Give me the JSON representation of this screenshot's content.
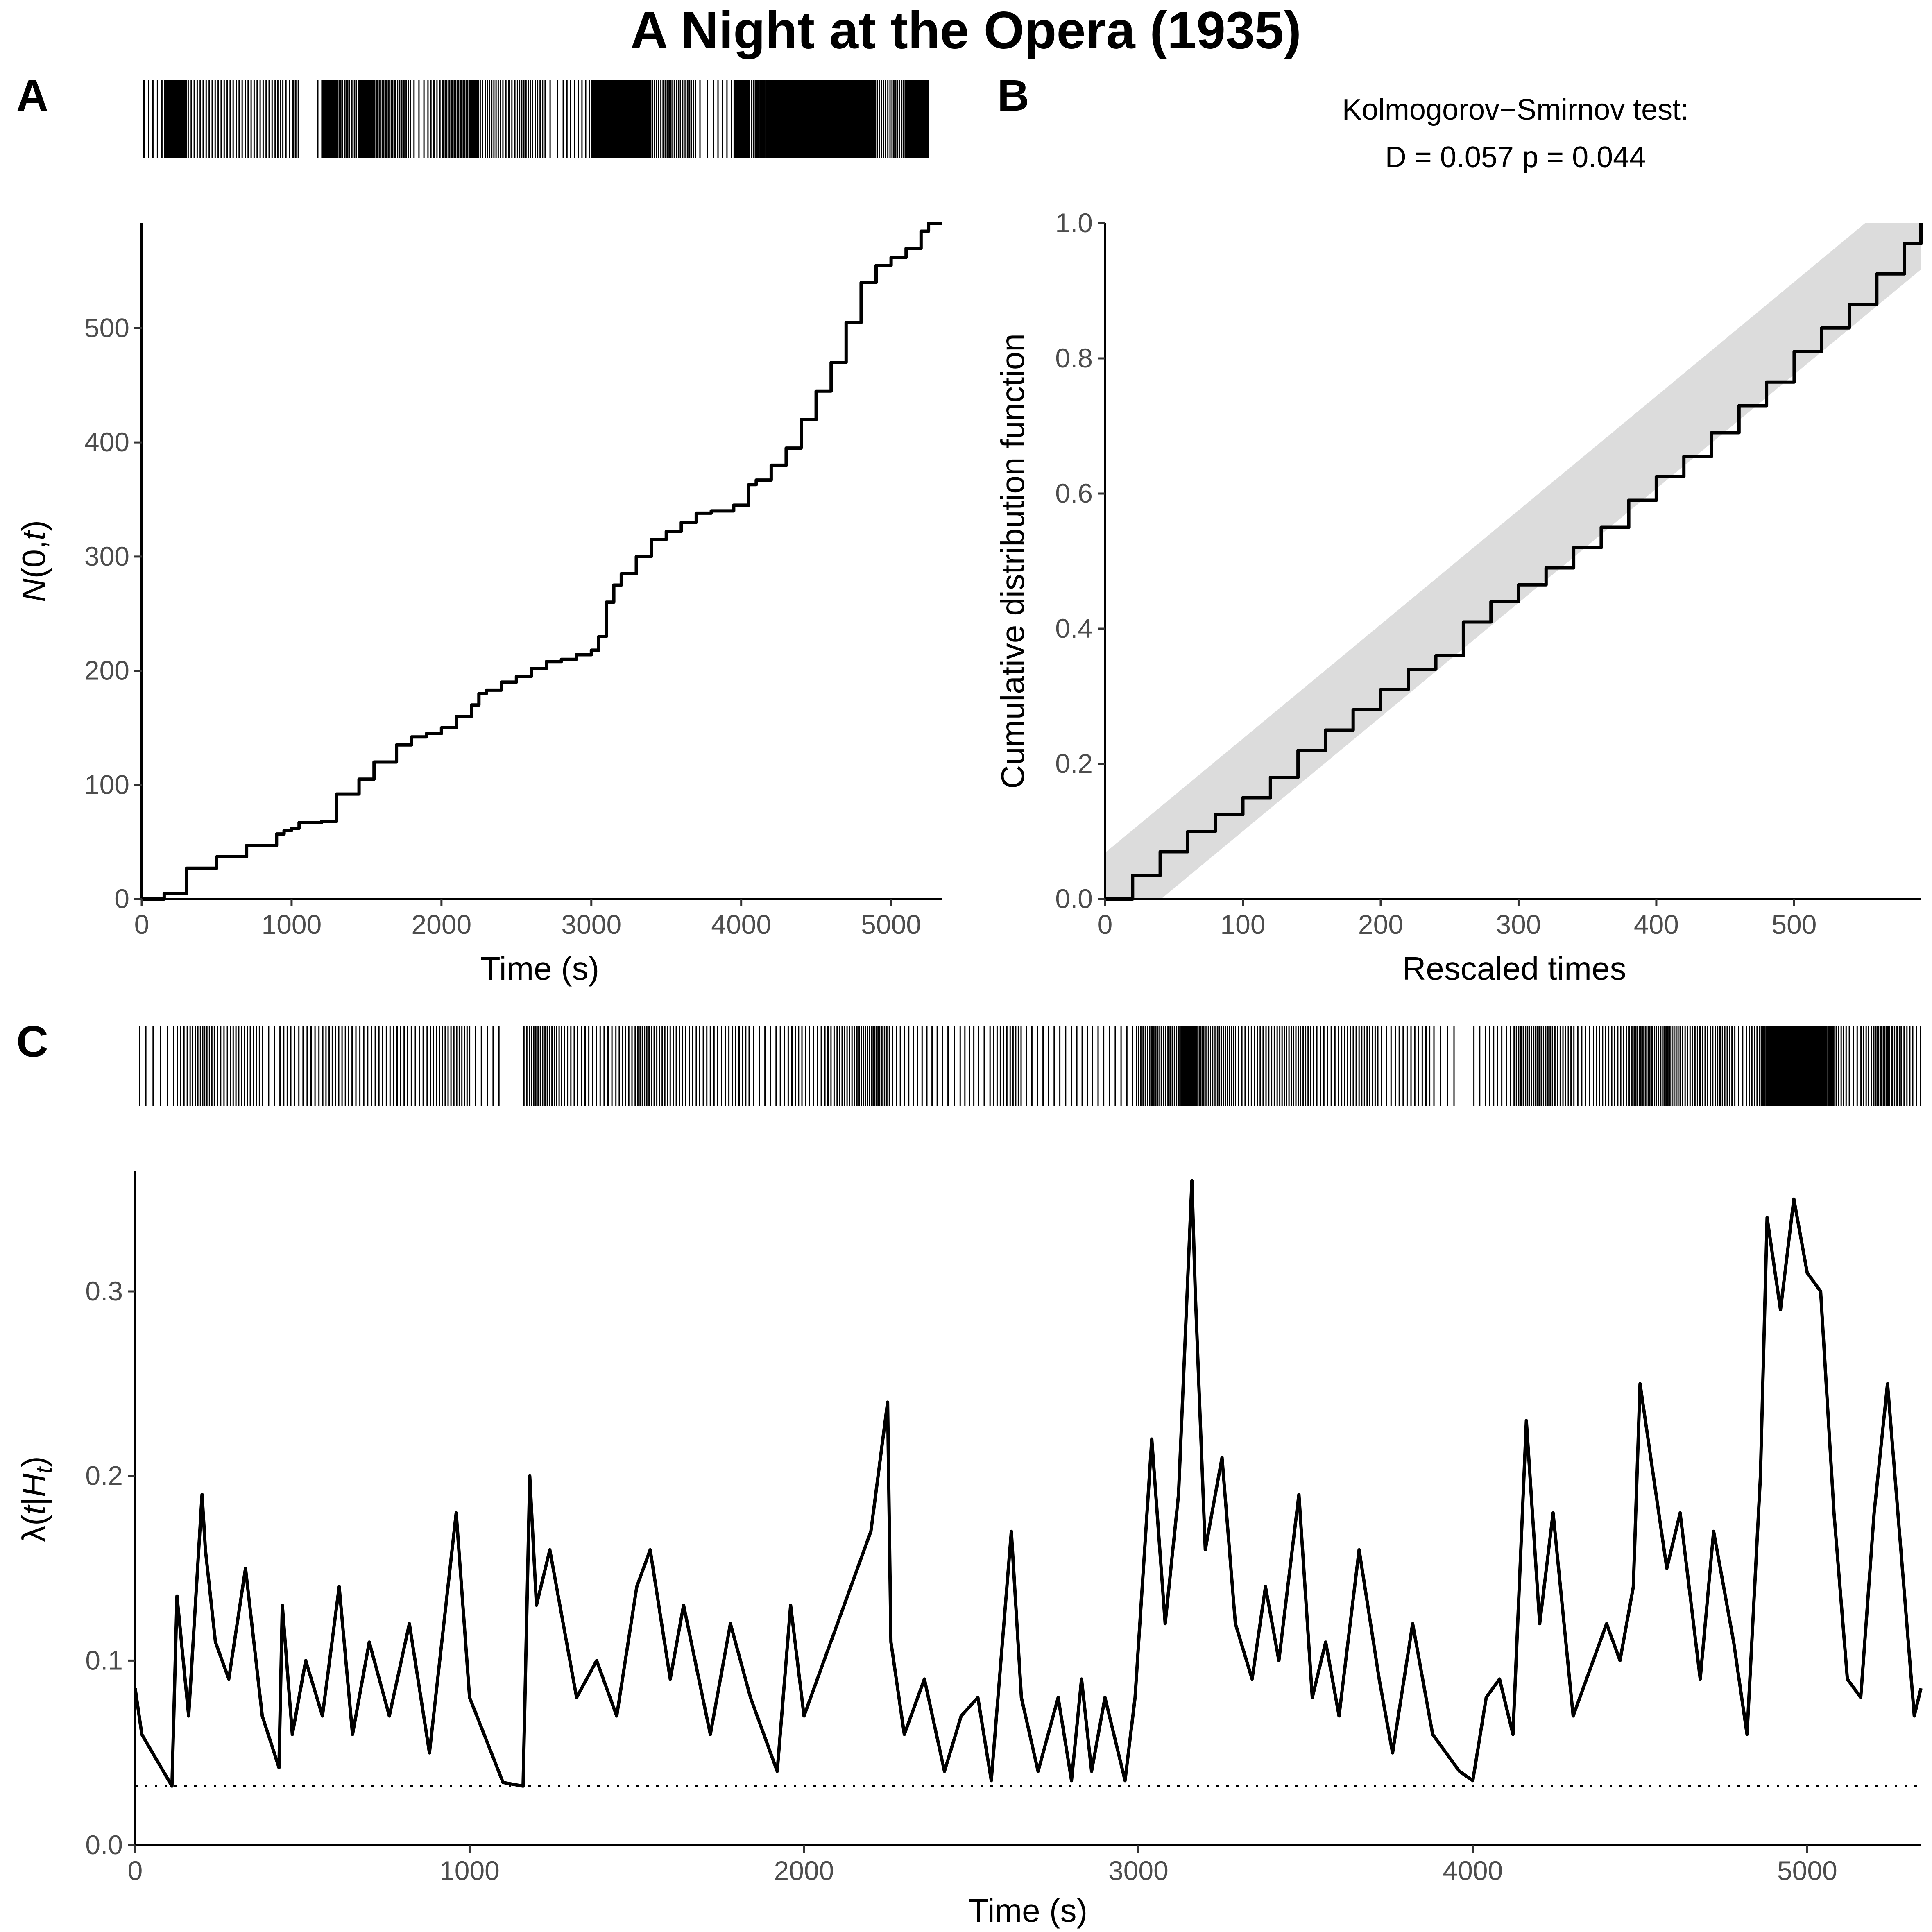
{
  "title": "A Night at the Opera (1935)",
  "panels": {
    "A": {
      "letter": "A"
    },
    "B": {
      "letter": "B"
    },
    "C": {
      "letter": "C"
    }
  },
  "chart_data": [
    {
      "panel": "A",
      "type": "line",
      "xlabel": "Time (s)",
      "ylabel": "N(0,t)",
      "xlim": [
        0,
        5340
      ],
      "ylim": [
        0,
        592
      ],
      "x_ticks": [
        0,
        1000,
        2000,
        3000,
        4000,
        5000
      ],
      "y_ticks": [
        0,
        100,
        200,
        300,
        400,
        500
      ],
      "x": [
        0,
        150,
        300,
        500,
        700,
        900,
        950,
        1000,
        1050,
        1100,
        1150,
        1200,
        1300,
        1450,
        1550,
        1700,
        1800,
        1900,
        2000,
        2100,
        2200,
        2250,
        2300,
        2400,
        2500,
        2600,
        2700,
        2800,
        2900,
        3000,
        3050,
        3100,
        3150,
        3200,
        3300,
        3400,
        3500,
        3600,
        3700,
        3800,
        3950,
        4050,
        4100,
        4200,
        4300,
        4400,
        4500,
        4600,
        4700,
        4800,
        4900,
        5000,
        5100,
        5200,
        5250,
        5300,
        5340
      ],
      "y": [
        0,
        5,
        27,
        37,
        47,
        57,
        60,
        62,
        67,
        67,
        67,
        68,
        92,
        105,
        120,
        135,
        142,
        145,
        150,
        160,
        170,
        180,
        183,
        190,
        195,
        202,
        208,
        210,
        214,
        218,
        230,
        260,
        275,
        285,
        300,
        315,
        322,
        330,
        338,
        340,
        345,
        363,
        367,
        380,
        395,
        420,
        445,
        470,
        505,
        540,
        555,
        562,
        570,
        585,
        592,
        592,
        592
      ]
    },
    {
      "panel": "B",
      "type": "line",
      "annotation_line1": "Kolmogorov−Smirnov test:",
      "annotation_line2": "D = 0.057  p = 0.044",
      "xlabel": "Rescaled times",
      "ylabel": "Cumulative distribution function",
      "xlim": [
        0,
        592
      ],
      "ylim": [
        0,
        1.0
      ],
      "x_ticks": [
        0,
        100,
        200,
        300,
        400,
        500
      ],
      "y_ticks": [
        0.0,
        0.2,
        0.4,
        0.6,
        0.8,
        1.0
      ],
      "confidence_band_halfwidth": 0.0685,
      "x": [
        0,
        20,
        40,
        60,
        80,
        100,
        120,
        140,
        160,
        180,
        200,
        220,
        240,
        260,
        280,
        300,
        320,
        340,
        360,
        380,
        400,
        420,
        440,
        460,
        480,
        500,
        520,
        540,
        560,
        580,
        592
      ],
      "y": [
        0,
        0.035,
        0.07,
        0.1,
        0.125,
        0.15,
        0.18,
        0.22,
        0.25,
        0.28,
        0.31,
        0.34,
        0.36,
        0.41,
        0.44,
        0.465,
        0.49,
        0.52,
        0.55,
        0.59,
        0.625,
        0.655,
        0.69,
        0.73,
        0.765,
        0.81,
        0.845,
        0.88,
        0.925,
        0.97,
        1.0
      ]
    },
    {
      "panel": "C",
      "type": "line",
      "xlabel": "Time (s)",
      "ylabel": "λ(t|Ht)",
      "xlim": [
        0,
        5340
      ],
      "ylim": [
        0,
        0.365
      ],
      "x_ticks": [
        0,
        1000,
        2000,
        3000,
        4000,
        5000
      ],
      "y_ticks": [
        0.0,
        0.1,
        0.2,
        0.3
      ],
      "baseline_rate": 0.032,
      "x": [
        0,
        20,
        110,
        125,
        160,
        200,
        210,
        240,
        280,
        330,
        380,
        430,
        440,
        470,
        510,
        560,
        610,
        650,
        700,
        760,
        820,
        880,
        960,
        1000,
        1100,
        1160,
        1180,
        1200,
        1240,
        1280,
        1320,
        1380,
        1440,
        1500,
        1540,
        1600,
        1640,
        1720,
        1780,
        1840,
        1920,
        1960,
        2000,
        2060,
        2100,
        2160,
        2200,
        2250,
        2260,
        2300,
        2360,
        2420,
        2470,
        2520,
        2560,
        2620,
        2650,
        2700,
        2760,
        2800,
        2830,
        2860,
        2900,
        2960,
        2990,
        3040,
        3080,
        3120,
        3160,
        3170,
        3200,
        3250,
        3290,
        3340,
        3380,
        3420,
        3480,
        3520,
        3560,
        3600,
        3660,
        3720,
        3760,
        3820,
        3880,
        3960,
        4000,
        4040,
        4080,
        4120,
        4160,
        4200,
        4240,
        4300,
        4360,
        4400,
        4440,
        4480,
        4500,
        4540,
        4580,
        4620,
        4680,
        4720,
        4780,
        4820,
        4860,
        4880,
        4920,
        4960,
        5000,
        5040,
        5080,
        5120,
        5160,
        5200,
        5240,
        5280,
        5320,
        5340
      ],
      "y": [
        0.085,
        0.06,
        0.032,
        0.135,
        0.07,
        0.19,
        0.16,
        0.11,
        0.09,
        0.15,
        0.07,
        0.042,
        0.13,
        0.06,
        0.1,
        0.07,
        0.14,
        0.06,
        0.11,
        0.07,
        0.12,
        0.05,
        0.18,
        0.08,
        0.034,
        0.032,
        0.2,
        0.13,
        0.16,
        0.12,
        0.08,
        0.1,
        0.07,
        0.14,
        0.16,
        0.09,
        0.13,
        0.06,
        0.12,
        0.08,
        0.04,
        0.13,
        0.07,
        0.1,
        0.12,
        0.15,
        0.17,
        0.24,
        0.11,
        0.06,
        0.09,
        0.04,
        0.07,
        0.08,
        0.035,
        0.17,
        0.08,
        0.04,
        0.08,
        0.035,
        0.09,
        0.04,
        0.08,
        0.035,
        0.08,
        0.22,
        0.12,
        0.19,
        0.36,
        0.3,
        0.16,
        0.21,
        0.12,
        0.09,
        0.14,
        0.1,
        0.19,
        0.08,
        0.11,
        0.07,
        0.16,
        0.09,
        0.05,
        0.12,
        0.06,
        0.04,
        0.035,
        0.08,
        0.09,
        0.06,
        0.23,
        0.12,
        0.18,
        0.07,
        0.1,
        0.12,
        0.1,
        0.14,
        0.25,
        0.2,
        0.15,
        0.18,
        0.09,
        0.17,
        0.11,
        0.06,
        0.2,
        0.34,
        0.29,
        0.35,
        0.31,
        0.3,
        0.18,
        0.09,
        0.08,
        0.18,
        0.25,
        0.16,
        0.07,
        0.085
      ]
    }
  ]
}
